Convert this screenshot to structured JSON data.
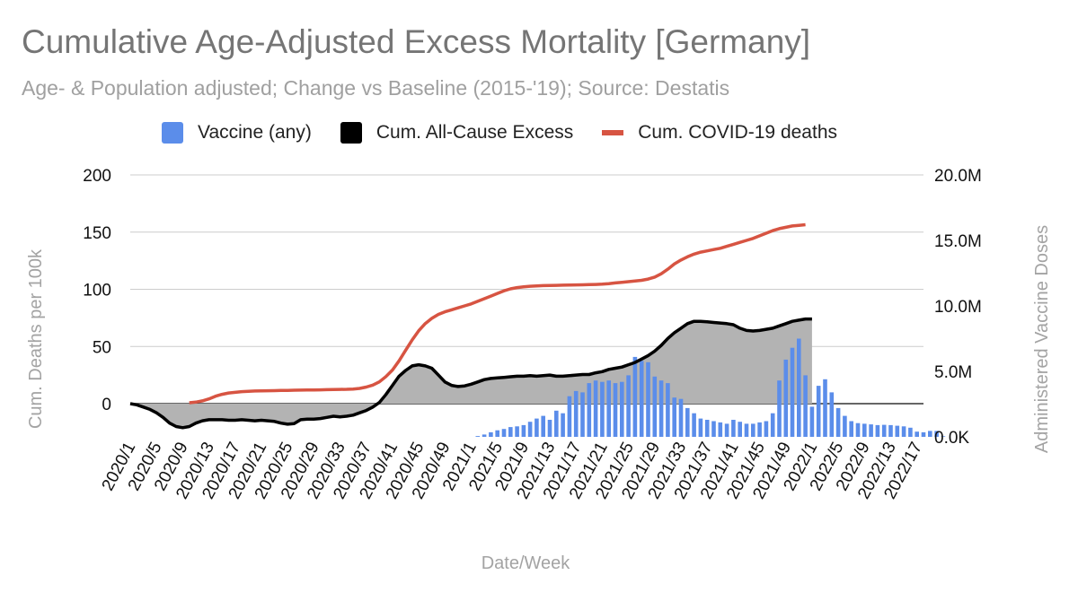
{
  "header": {
    "title": "Cumulative Age-Adjusted Excess Mortality [Germany]",
    "subtitle": "Age- & Population adjusted; Change vs Baseline (2015-'19); Source: Destatis"
  },
  "colors": {
    "vaccine": "#5b8dea",
    "excess_line": "#000000",
    "excess_fill": "#b3b3b3",
    "covid": "#d75442",
    "grid": "#cccccc"
  },
  "chart_data": {
    "type": "combo",
    "title": "Cumulative Age-Adjusted Excess Mortality [Germany]",
    "subtitle": "Age- & Population adjusted; Change vs Baseline (2015-'19); Source: Destatis",
    "xlabel": "Date/Week",
    "ylabel": "Cum. Deaths per 100k",
    "y2label": "Administered Vaccine Doses",
    "ylim": [
      -30,
      200
    ],
    "y2lim": [
      0,
      20000000
    ],
    "yticks": [
      "200",
      "150",
      "100",
      "50",
      "0"
    ],
    "y2ticks": [
      "20.0M",
      "15.0M",
      "10.0M",
      "5.0M",
      "0.0K"
    ],
    "legend_position": "top",
    "grid": true,
    "x_labels": [
      "2020/1",
      "2020/5",
      "2020/9",
      "2020/13",
      "2020/17",
      "2020/21",
      "2020/25",
      "2020/29",
      "2020/33",
      "2020/37",
      "2020/41",
      "2020/45",
      "2020/49",
      "2021/1",
      "2021/5",
      "2021/9",
      "2021/13",
      "2021/17",
      "2021/21",
      "2021/25",
      "2021/29",
      "2021/33",
      "2021/37",
      "2021/41",
      "2021/45",
      "2021/49",
      "2022/1",
      "2022/5",
      "2022/9",
      "2022/13",
      "2022/17"
    ],
    "series": [
      {
        "name": "Vaccine (any)",
        "kind": "bar",
        "axis": "right",
        "start_index": 53,
        "values": [
          60000,
          180000,
          350000,
          500000,
          600000,
          750000,
          800000,
          900000,
          1150000,
          1400000,
          1600000,
          1300000,
          2000000,
          1800000,
          3100000,
          3500000,
          3400000,
          4100000,
          4300000,
          4200000,
          4300000,
          4100000,
          4200000,
          4700000,
          6100000,
          5800000,
          5700000,
          4600000,
          4300000,
          4100000,
          3000000,
          2900000,
          2200000,
          1800000,
          1400000,
          1300000,
          1200000,
          1100000,
          1000000,
          1300000,
          1150000,
          1000000,
          1000000,
          1100000,
          1200000,
          1800000,
          4300000,
          5900000,
          6800000,
          7500000,
          4700000,
          2300000,
          3900000,
          4400000,
          3400000,
          2200000,
          1600000,
          1200000,
          1050000,
          1000000,
          950000,
          900000,
          920000,
          900000,
          850000,
          800000,
          700000,
          400000,
          350000,
          450000,
          450000,
          50000
        ]
      },
      {
        "name": "Cum. All-Cause Excess",
        "kind": "area",
        "axis": "left",
        "start_index": 0,
        "values": [
          0,
          -1,
          -3,
          -5,
          -8,
          -12,
          -17,
          -20,
          -21,
          -20,
          -17,
          -15,
          -14,
          -14,
          -14,
          -14.5,
          -14.5,
          -14,
          -14.5,
          -15,
          -14.5,
          -15,
          -15.5,
          -17,
          -18,
          -17.5,
          -14,
          -13.5,
          -13.5,
          -13,
          -12,
          -11,
          -11.5,
          -11,
          -10,
          -8,
          -6,
          -3,
          1,
          8,
          16,
          24,
          29,
          33,
          34,
          33,
          31,
          25,
          19,
          16,
          15,
          15.5,
          17,
          19,
          21,
          22,
          22.5,
          23,
          23.5,
          24,
          24,
          24.5,
          24,
          24.5,
          25,
          24,
          24,
          24.5,
          25,
          25.5,
          25.5,
          27,
          28,
          30,
          31,
          32,
          34,
          36,
          39,
          42,
          46,
          51,
          57,
          62,
          66,
          70,
          72,
          72,
          71.5,
          71,
          70.5,
          70,
          69,
          66,
          64,
          63.5,
          64,
          65,
          66,
          68,
          70,
          72,
          73,
          74,
          74
        ]
      },
      {
        "name": "Cum. COVID-19 deaths",
        "kind": "line",
        "axis": "right",
        "start_index": 9,
        "values": [
          2600000,
          2650000,
          2750000,
          2900000,
          3100000,
          3250000,
          3350000,
          3400000,
          3450000,
          3480000,
          3500000,
          3510000,
          3520000,
          3530000,
          3540000,
          3550000,
          3560000,
          3570000,
          3575000,
          3580000,
          3590000,
          3600000,
          3610000,
          3620000,
          3630000,
          3650000,
          3700000,
          3800000,
          3950000,
          4200000,
          4600000,
          5100000,
          5800000,
          6600000,
          7400000,
          8100000,
          8650000,
          9050000,
          9350000,
          9550000,
          9700000,
          9850000,
          10000000,
          10150000,
          10350000,
          10550000,
          10750000,
          10950000,
          11150000,
          11300000,
          11400000,
          11450000,
          11500000,
          11520000,
          11550000,
          11560000,
          11570000,
          11580000,
          11590000,
          11600000,
          11610000,
          11620000,
          11640000,
          11660000,
          11700000,
          11750000,
          11800000,
          11850000,
          11900000,
          11950000,
          12050000,
          12200000,
          12450000,
          12800000,
          13200000,
          13500000,
          13750000,
          13950000,
          14100000,
          14200000,
          14300000,
          14400000,
          14550000,
          14700000,
          14850000,
          15000000,
          15150000,
          15350000,
          15550000,
          15750000,
          15900000,
          16000000,
          16100000,
          16150000,
          16200000
        ]
      }
    ]
  }
}
